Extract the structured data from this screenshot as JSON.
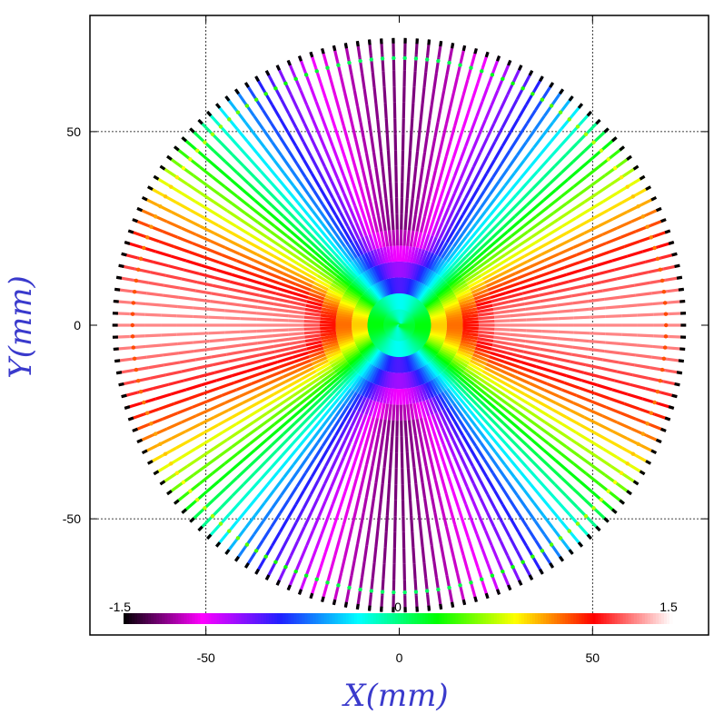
{
  "chart_data": {
    "type": "scatter",
    "title": "",
    "xlabel": "X(mm)",
    "ylabel": "Y(mm)",
    "xlim": [
      -80,
      80
    ],
    "ylim": [
      -80,
      80
    ],
    "x_ticks": [
      -50,
      0,
      50
    ],
    "y_ticks": [
      -50,
      0,
      50
    ],
    "grid": true,
    "pattern": "radial rays",
    "ray_count": 150,
    "ray_outer_radius_mm": 74,
    "colorbar": {
      "min": -1.5,
      "max": 1.5,
      "tick_labels": [
        "-1.5",
        "0",
        "1.5"
      ],
      "colormap": [
        "#000000",
        "#ff00ff",
        "#2020ff",
        "#00ffff",
        "#00ff00",
        "#ffff00",
        "#ff0000",
        "#ffffff"
      ]
    },
    "value_field": "value(θ) ≈ 1.3·cos(2θ) with low-magnitude center band; black end tips at radius ≈ 74 mm"
  }
}
